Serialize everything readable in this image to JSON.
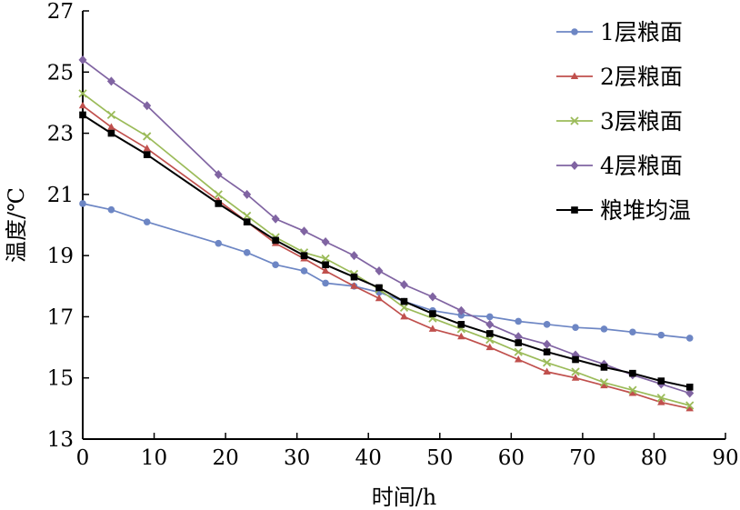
{
  "chart_data": {
    "type": "line",
    "xlabel": "时间/h",
    "ylabel": "温度/℃",
    "xlim": [
      0,
      90
    ],
    "ylim": [
      13,
      27
    ],
    "xticks": [
      0,
      10,
      20,
      30,
      40,
      50,
      60,
      70,
      80,
      90
    ],
    "yticks": [
      13,
      15,
      17,
      19,
      21,
      23,
      25,
      27
    ],
    "grid": false,
    "legend_position": "top-right",
    "x": [
      0,
      4,
      9,
      19,
      23,
      27,
      31,
      34,
      38,
      41.5,
      45,
      49,
      53,
      57,
      61,
      65,
      69,
      73,
      77,
      81,
      85
    ],
    "series": [
      {
        "name": "1层粮面",
        "color": "#6d86c4",
        "marker": "circle",
        "values": [
          20.7,
          20.5,
          20.1,
          19.4,
          19.1,
          18.7,
          18.5,
          18.1,
          18.0,
          17.8,
          17.5,
          17.2,
          17.05,
          17.0,
          16.85,
          16.75,
          16.65,
          16.6,
          16.5,
          16.4,
          16.3
        ]
      },
      {
        "name": "2层粮面",
        "color": "#c0504d",
        "marker": "triangle",
        "values": [
          23.9,
          23.2,
          22.5,
          20.8,
          20.1,
          19.4,
          18.9,
          18.5,
          18.0,
          17.6,
          17.0,
          16.6,
          16.35,
          16.0,
          15.6,
          15.2,
          15.0,
          14.75,
          14.5,
          14.2,
          14.0
        ]
      },
      {
        "name": "3层粮面",
        "color": "#9bbb59",
        "marker": "x",
        "values": [
          24.3,
          23.6,
          22.9,
          21.0,
          20.3,
          19.6,
          19.1,
          18.9,
          18.4,
          17.9,
          17.3,
          16.95,
          16.6,
          16.25,
          15.85,
          15.5,
          15.2,
          14.85,
          14.6,
          14.35,
          14.1
        ]
      },
      {
        "name": "4层粮面",
        "color": "#8064a2",
        "marker": "diamond",
        "values": [
          25.4,
          24.7,
          23.9,
          21.65,
          21.0,
          20.2,
          19.8,
          19.45,
          19.0,
          18.5,
          18.05,
          17.65,
          17.2,
          16.75,
          16.35,
          16.1,
          15.75,
          15.45,
          15.1,
          14.8,
          14.5
        ]
      },
      {
        "name": "粮堆均温",
        "color": "#000000",
        "marker": "square",
        "values": [
          23.6,
          23.0,
          22.3,
          20.7,
          20.1,
          19.5,
          19.0,
          18.7,
          18.3,
          17.95,
          17.5,
          17.1,
          16.75,
          16.45,
          16.15,
          15.85,
          15.6,
          15.35,
          15.15,
          14.9,
          14.7
        ]
      }
    ]
  }
}
